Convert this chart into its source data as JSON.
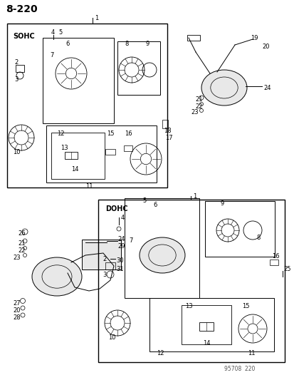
{
  "page_number": "8-220",
  "watermark": "95708 220",
  "bg_color": "#ffffff",
  "line_color": "#000000",
  "text_color": "#000000",
  "title_fontsize": 11,
  "label_fontsize": 7,
  "small_fontsize": 6
}
